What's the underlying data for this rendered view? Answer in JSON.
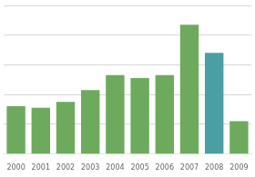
{
  "chart_data": {
    "type": "bar",
    "categories": [
      "2000",
      "2001",
      "2002",
      "2003",
      "2004",
      "2005",
      "2006",
      "2007",
      "2008",
      "2009"
    ],
    "values": [
      32,
      31,
      35,
      43,
      53,
      51,
      53,
      87,
      68,
      22
    ],
    "colors": [
      "#6daa5e",
      "#6daa5e",
      "#6daa5e",
      "#6daa5e",
      "#6daa5e",
      "#6daa5e",
      "#6daa5e",
      "#6daa5e",
      "#4a9fa5",
      "#6daa5e"
    ],
    "ylim": [
      0,
      100
    ],
    "yticks": [
      20,
      40,
      60,
      80,
      100
    ],
    "grid": true,
    "tick_labels": "x"
  }
}
